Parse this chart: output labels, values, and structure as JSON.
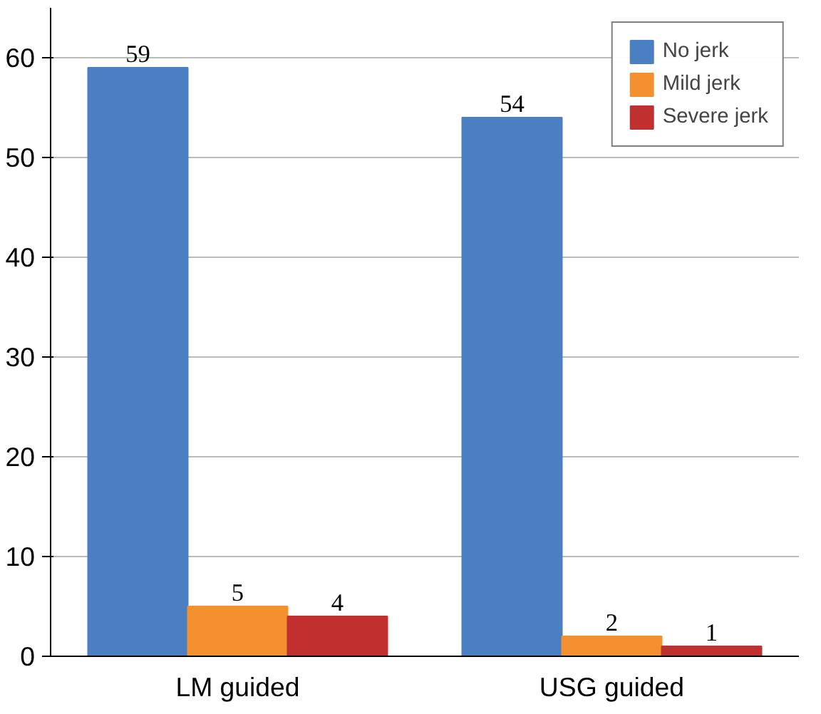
{
  "chart_data": {
    "type": "bar",
    "categories": [
      "LM guided",
      "USG guided"
    ],
    "series": [
      {
        "name": "No jerk",
        "color": "#4a7fc1",
        "values": [
          59,
          54
        ]
      },
      {
        "name": "Mild jerk",
        "color": "#f39130",
        "values": [
          5,
          2
        ]
      },
      {
        "name": "Severe jerk",
        "color": "#c0302f",
        "values": [
          4,
          1
        ]
      }
    ],
    "ylim": [
      0,
      65
    ],
    "yticks": [
      0,
      10,
      20,
      30,
      40,
      50,
      60
    ],
    "grid": "y",
    "legend": "top right",
    "data_labels": true
  }
}
